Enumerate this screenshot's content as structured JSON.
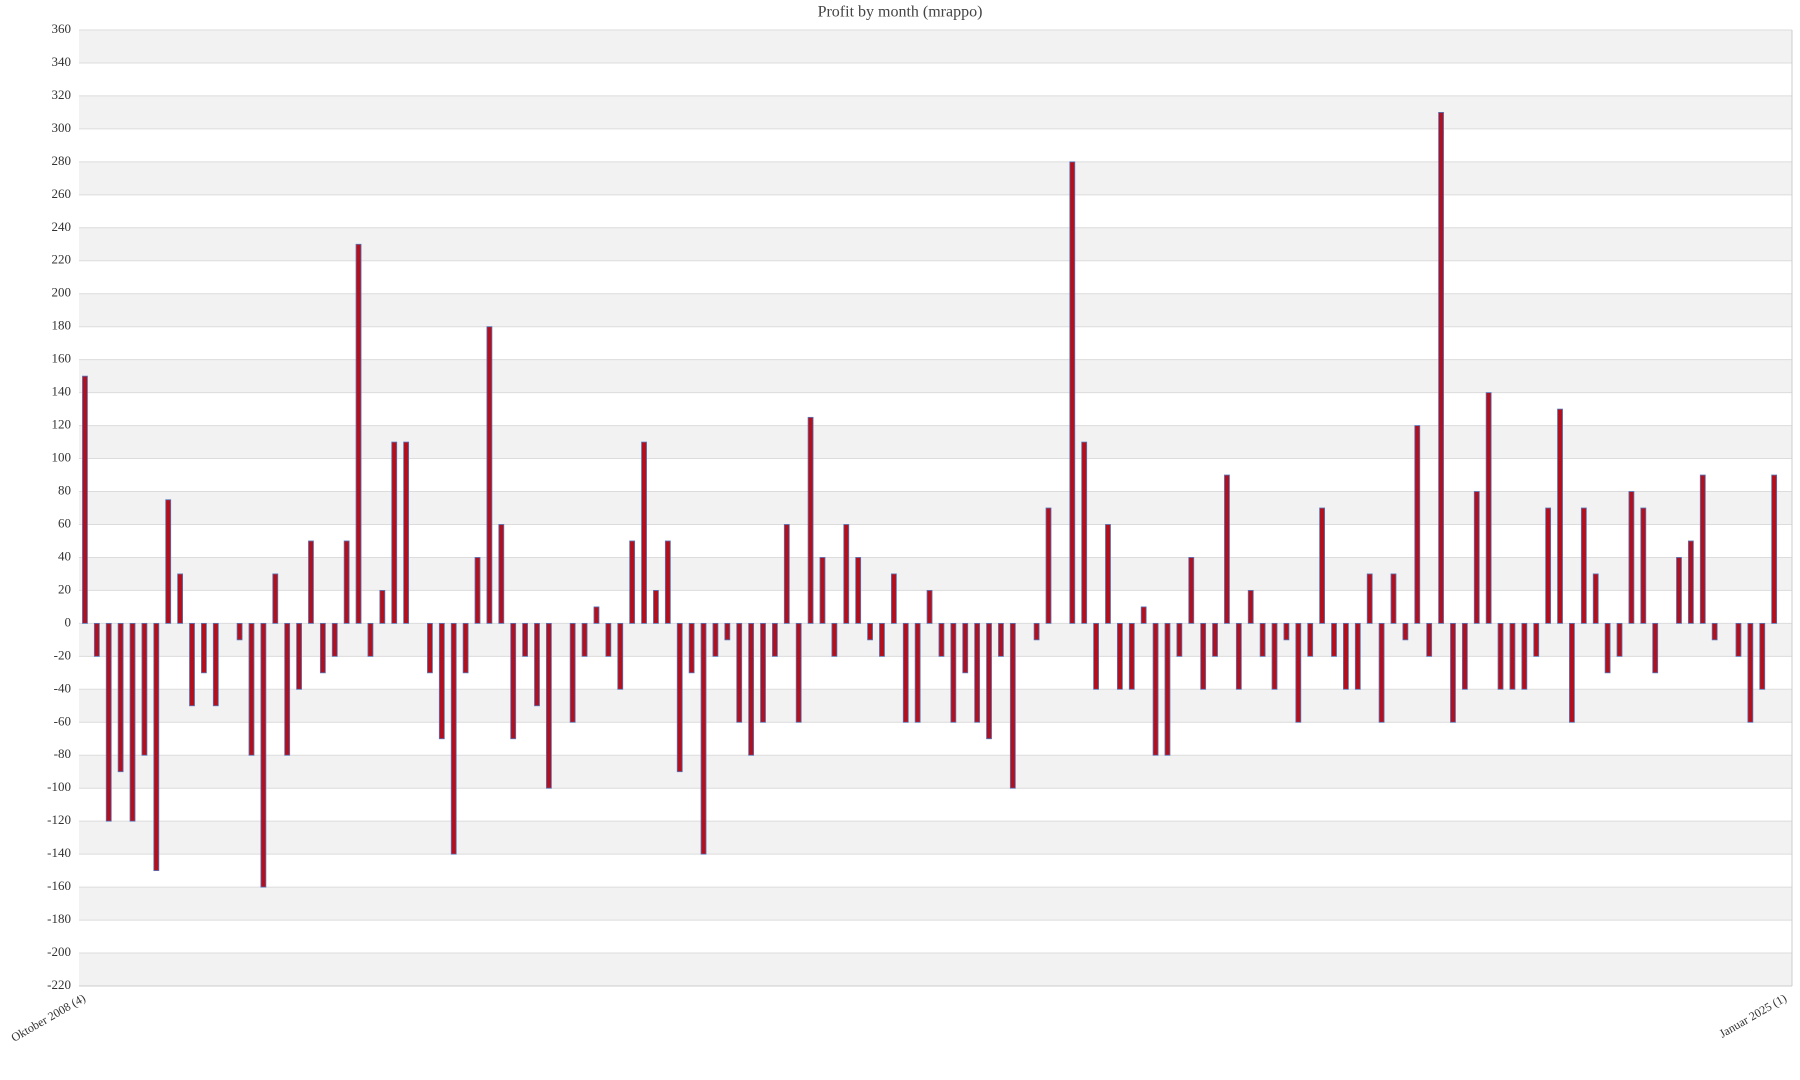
{
  "chart_data": {
    "type": "bar",
    "title": "Profit by month  (mrappo)",
    "categories": [
      "Oktober 2008 (4)",
      null,
      null,
      null,
      null,
      null,
      null,
      null,
      null,
      null,
      null,
      null,
      null,
      null,
      null,
      null,
      null,
      null,
      null,
      null,
      null,
      null,
      null,
      null,
      null,
      null,
      null,
      null,
      null,
      null,
      null,
      null,
      null,
      null,
      null,
      null,
      null,
      null,
      null,
      null,
      null,
      null,
      null,
      null,
      null,
      null,
      null,
      null,
      null,
      null,
      null,
      null,
      null,
      null,
      null,
      null,
      null,
      null,
      null,
      null,
      null,
      null,
      null,
      null,
      null,
      null,
      null,
      null,
      null,
      null,
      null,
      null,
      null,
      null,
      null,
      null,
      null,
      null,
      null,
      null,
      null,
      null,
      null,
      null,
      null,
      null,
      null,
      null,
      null,
      null,
      null,
      null,
      null,
      null,
      null,
      null,
      null,
      null,
      null,
      null,
      null,
      null,
      null,
      null,
      null,
      null,
      null,
      null,
      null,
      null,
      null,
      null,
      null,
      null,
      null,
      null,
      null,
      null,
      null,
      null,
      null,
      null,
      null,
      null,
      null,
      null,
      null,
      null,
      null,
      null,
      null,
      null,
      null,
      null,
      null,
      null,
      null,
      null,
      null,
      null,
      null,
      null,
      null,
      "Januar 2025 (1)"
    ],
    "values": [
      150,
      -20,
      -120,
      -90,
      -120,
      -80,
      -150,
      75,
      30,
      -50,
      -30,
      -50,
      0,
      -10,
      -80,
      -160,
      30,
      -80,
      -40,
      50,
      -30,
      -20,
      50,
      230,
      -20,
      20,
      110,
      110,
      0,
      -30,
      -70,
      -140,
      -30,
      40,
      180,
      60,
      -70,
      -20,
      -50,
      -100,
      0,
      -60,
      -20,
      10,
      -20,
      -40,
      50,
      110,
      20,
      50,
      -90,
      -30,
      -140,
      -20,
      -10,
      -60,
      -80,
      -60,
      -20,
      60,
      -60,
      125,
      40,
      -20,
      60,
      40,
      -10,
      -20,
      30,
      -60,
      -60,
      20,
      -20,
      -60,
      -30,
      -60,
      -70,
      -20,
      -100,
      0,
      -10,
      70,
      0,
      280,
      110,
      -40,
      60,
      -40,
      -40,
      10,
      -80,
      -80,
      -20,
      40,
      -40,
      -20,
      90,
      -40,
      20,
      -20,
      -40,
      -10,
      -60,
      -20,
      70,
      -20,
      -40,
      -40,
      30,
      -60,
      30,
      -10,
      120,
      -20,
      310,
      -60,
      -40,
      80,
      140,
      -40,
      -40,
      -40,
      -20,
      70,
      130,
      -60,
      70,
      30,
      -30,
      -20,
      80,
      70,
      -30,
      0,
      40,
      50,
      90,
      -10,
      0,
      -20,
      -60,
      -40,
      90,
      0
    ],
    "color": "#b3101e",
    "ylim": [
      -220,
      360
    ],
    "yticks": [
      -220,
      -200,
      -180,
      -160,
      -140,
      -120,
      -100,
      -80,
      -60,
      -40,
      -20,
      0,
      20,
      40,
      60,
      80,
      100,
      120,
      140,
      160,
      180,
      200,
      220,
      240,
      260,
      280,
      300,
      320,
      340,
      360
    ],
    "grid": true
  }
}
